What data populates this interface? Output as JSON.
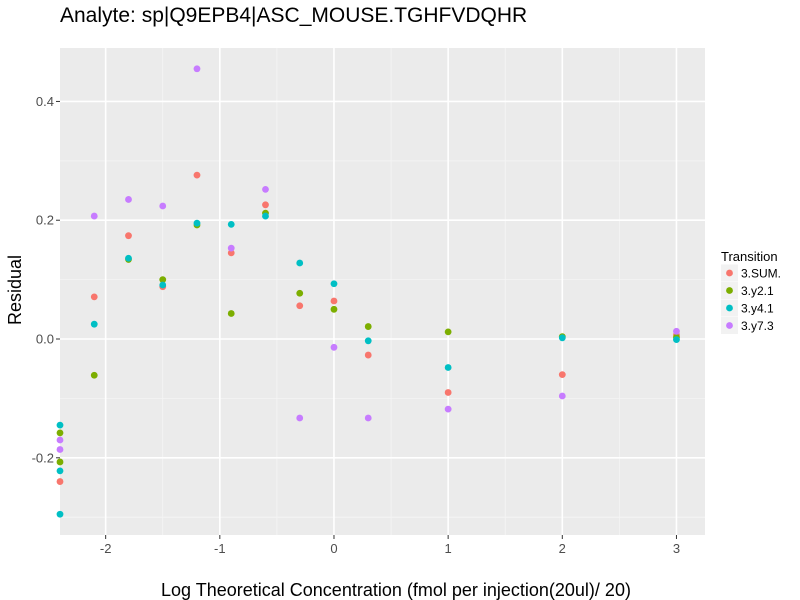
{
  "chart_data": {
    "type": "scatter",
    "title": "Analyte: sp|Q9EPB4|ASC_MOUSE.TGHFVDQHR",
    "xlabel": "Log Theoretical Concentration (fmol per injection(20ul)/ 20)",
    "ylabel": "Residual",
    "xlim": [
      -2.4,
      3.25
    ],
    "ylim": [
      -0.33,
      0.49
    ],
    "x_ticks": [
      -2,
      -1,
      0,
      1,
      2,
      3
    ],
    "x_tick_labels": [
      "-2",
      "-1",
      "0",
      "1",
      "2",
      "3"
    ],
    "y_ticks": [
      -0.2,
      0.0,
      0.2,
      0.4
    ],
    "y_tick_labels": [
      "-0.2",
      "0.0",
      "0.2",
      "0.4"
    ],
    "grid": true,
    "legend": {
      "title": "Transition",
      "position": "right"
    },
    "series": [
      {
        "name": "3.SUM.",
        "color": "#F8766D",
        "points": [
          [
            -2.4,
            -0.24
          ],
          [
            -2.1,
            0.071
          ],
          [
            -1.8,
            0.174
          ],
          [
            -1.5,
            0.088
          ],
          [
            -1.2,
            0.276
          ],
          [
            -0.9,
            0.145
          ],
          [
            -0.6,
            0.226
          ],
          [
            -0.3,
            0.056
          ],
          [
            0.0,
            0.064
          ],
          [
            0.3,
            -0.027
          ],
          [
            1.0,
            -0.09
          ],
          [
            2.0,
            -0.06
          ],
          [
            3.0,
            0.007
          ]
        ]
      },
      {
        "name": "3.y2.1",
        "color": "#7CAE00",
        "points": [
          [
            -2.4,
            -0.158
          ],
          [
            -2.4,
            -0.207
          ],
          [
            -2.1,
            -0.061
          ],
          [
            -1.8,
            0.134
          ],
          [
            -1.5,
            0.1
          ],
          [
            -1.2,
            0.192
          ],
          [
            -0.9,
            0.043
          ],
          [
            -0.6,
            0.212
          ],
          [
            -0.3,
            0.077
          ],
          [
            0.0,
            0.05
          ],
          [
            0.3,
            0.021
          ],
          [
            1.0,
            0.012
          ],
          [
            2.0,
            0.004
          ],
          [
            3.0,
            0.003
          ]
        ]
      },
      {
        "name": "3.y4.1",
        "color": "#00BFC4",
        "points": [
          [
            -2.4,
            -0.145
          ],
          [
            -2.4,
            -0.222
          ],
          [
            -2.4,
            -0.295
          ],
          [
            -2.1,
            0.025
          ],
          [
            -1.8,
            0.136
          ],
          [
            -1.5,
            0.091
          ],
          [
            -1.2,
            0.195
          ],
          [
            -0.9,
            0.193
          ],
          [
            -0.6,
            0.207
          ],
          [
            -0.3,
            0.128
          ],
          [
            0.0,
            0.093
          ],
          [
            0.3,
            -0.003
          ],
          [
            1.0,
            -0.048
          ],
          [
            2.0,
            0.002
          ],
          [
            3.0,
            -0.001
          ]
        ]
      },
      {
        "name": "3.y7.3",
        "color": "#C77CFF",
        "points": [
          [
            -2.4,
            -0.17
          ],
          [
            -2.4,
            -0.186
          ],
          [
            -2.1,
            0.207
          ],
          [
            -1.8,
            0.235
          ],
          [
            -1.5,
            0.224
          ],
          [
            -1.2,
            0.455
          ],
          [
            -0.9,
            0.153
          ],
          [
            -0.6,
            0.252
          ],
          [
            -0.3,
            -0.133
          ],
          [
            0.0,
            -0.014
          ],
          [
            0.3,
            -0.133
          ],
          [
            1.0,
            -0.118
          ],
          [
            2.0,
            -0.096
          ],
          [
            3.0,
            0.013
          ]
        ]
      }
    ]
  }
}
